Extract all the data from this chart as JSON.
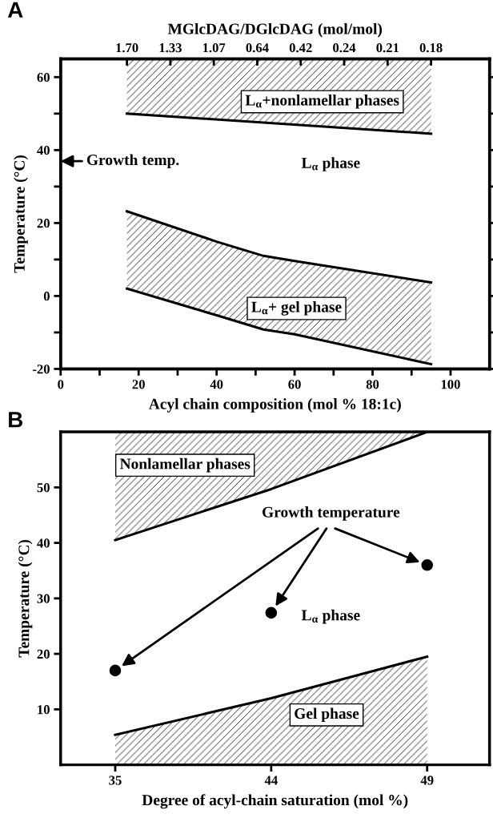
{
  "chart_data": [
    {
      "type": "line",
      "title": "A",
      "xlabel": "Acyl chain composition (mol % 18:1c)",
      "ylabel": "Temperature (°C)",
      "x2label": "MGlcDAG/DGlcDAG (mol/mol)",
      "xlim": [
        0,
        110
      ],
      "xticks": [
        0,
        {
          "value": 10,
          "label": null
        },
        20,
        {
          "value": 30,
          "label": null
        },
        40,
        {
          "value": 50,
          "label": null
        },
        60,
        {
          "value": 70,
          "label": null
        },
        80,
        {
          "value": 90,
          "label": null
        },
        100
      ],
      "ylim": [
        -20,
        65
      ],
      "yticks": [
        -20,
        {
          "value": -10,
          "label": null
        },
        0,
        {
          "value": 10,
          "label": null
        },
        20,
        {
          "value": 30,
          "label": null
        },
        40,
        {
          "value": 50,
          "label": null
        },
        60
      ],
      "series": [
        {
          "color": "#000000",
          "x": [
            17,
            95
          ],
          "values": [
            50,
            44.5
          ],
          "lower": [
            50,
            44.5
          ],
          "upper": [
            65,
            65
          ]
        },
        {
          "color": "#000000",
          "x": [
            17,
            40,
            52,
            60,
            95
          ],
          "values": [
            23.2,
            14.9,
            11,
            9.6,
            3.7
          ],
          "lower": [
            2,
            -5.3,
            -9.2,
            -10.5,
            -18.7
          ],
          "upper": [
            23.2,
            14.9,
            11,
            9.6,
            3.7
          ]
        },
        {
          "color": "#000000",
          "x": [
            17,
            40,
            52,
            60,
            95
          ],
          "values": [
            2,
            -5.3,
            -9.2,
            -10.5,
            -18.7
          ]
        }
      ],
      "annotations": [
        "L$_{α}$+nonlamellar phases",
        "L$_{α}$ phase",
        "L$_{α}$+ gel phase",
        "Growth temp.",
        "1.70",
        "1.33",
        "1.07",
        "0.64",
        "0.42",
        "0.24",
        "0.21",
        "0.18"
      ]
    },
    {
      "type": "line",
      "title": "B",
      "xlabel": "Degree of acyl-chain saturation (mol %)",
      "ylabel": "Temperature (°C)",
      "categories": [
        "35",
        "44",
        "49"
      ],
      "ylim": [
        0,
        60
      ],
      "yticks": [
        10,
        20,
        30,
        40,
        50
      ],
      "series": [
        {
          "color": "#000000",
          "values": [
            40.5,
            49.7,
            60
          ],
          "lower": [
            40.5,
            49.7,
            60
          ],
          "upper": [
            60,
            60,
            60
          ]
        },
        {
          "type": "area",
          "color": "#000000",
          "values": [
            5.4,
            12,
            19.5
          ]
        },
        {
          "type": "scatter",
          "color": "#000000",
          "marker": "circle",
          "values": [
            17,
            27.4,
            36
          ]
        }
      ],
      "annotations": [
        "Nonlamellar phases",
        "Growth temperature",
        "L$_{α}$ phase",
        "Gel phase"
      ]
    }
  ]
}
